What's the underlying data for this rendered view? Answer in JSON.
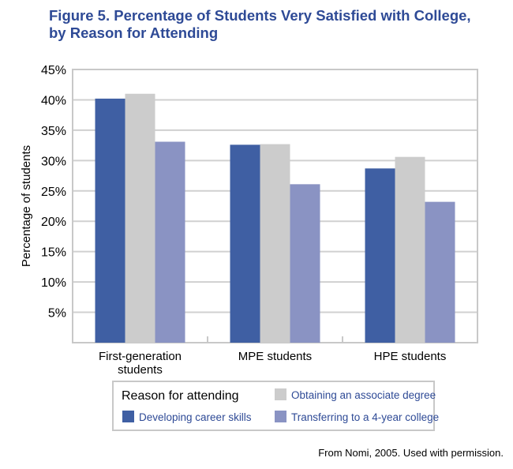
{
  "title_line1": "Figure 5. Percentage of Students Very Satisfied with College,",
  "title_line2": "by Reason for Attending",
  "credit": "From Nomi, 2005. Used with permission.",
  "chart_data": {
    "type": "bar",
    "title": "Figure 5. Percentage of Students Very Satisfied with College, by Reason for Attending",
    "xlabel": "",
    "ylabel": "Percentage of students",
    "ylim": [
      0,
      45
    ],
    "yticks": [
      5,
      10,
      15,
      20,
      25,
      30,
      35,
      40,
      45
    ],
    "ytick_labels": [
      "5%",
      "10%",
      "15%",
      "20%",
      "25%",
      "30%",
      "35%",
      "40%",
      "45%"
    ],
    "grid": true,
    "categories": [
      [
        "First-generation",
        "students"
      ],
      [
        "MPE students"
      ],
      [
        "HPE students"
      ]
    ],
    "legend_title": "Reason for attending",
    "legend_placement": "bottom",
    "series": [
      {
        "name": "Developing career skills",
        "color": "#3F5FA3",
        "values": [
          40.2,
          32.6,
          28.7
        ]
      },
      {
        "name": "Obtaining an associate degree",
        "color": "#CCCCCC",
        "values": [
          41.0,
          32.7,
          30.6
        ]
      },
      {
        "name": "Transferring to a 4-year college",
        "color": "#8A93C3",
        "values": [
          33.1,
          26.1,
          23.2
        ]
      }
    ]
  }
}
